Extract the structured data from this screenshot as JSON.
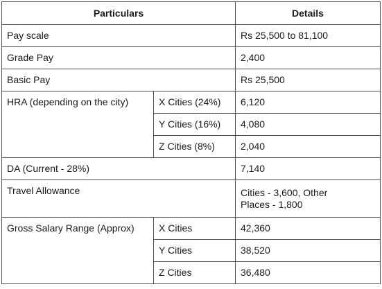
{
  "table": {
    "headers": {
      "particulars": "Particulars",
      "details": "Details"
    },
    "rows": {
      "pay_scale": {
        "label": "Pay scale",
        "value": "Rs 25,500 to 81,100"
      },
      "grade_pay": {
        "label": "Grade Pay",
        "value": "2,400"
      },
      "basic_pay": {
        "label": "Basic Pay",
        "value": "Rs 25,500"
      },
      "hra": {
        "label": "HRA (depending on the city)",
        "items": [
          {
            "city": "X Cities (24%)",
            "value": "6,120"
          },
          {
            "city": "Y Cities (16%)",
            "value": "4,080"
          },
          {
            "city": "Z Cities (8%)",
            "value": "2,040"
          }
        ]
      },
      "da": {
        "label": "DA (Current - 28%)",
        "value": "7,140"
      },
      "travel": {
        "label": "Travel Allowance",
        "value_line1": "Cities - 3,600, Other",
        "value_line2": "Places - 1,800"
      },
      "gross": {
        "label": "Gross Salary Range (Approx)",
        "items": [
          {
            "city": "X Cities",
            "value": "42,360"
          },
          {
            "city": "Y Cities",
            "value": "38,520"
          },
          {
            "city": "Z Cities",
            "value": "36,480"
          }
        ]
      }
    }
  }
}
